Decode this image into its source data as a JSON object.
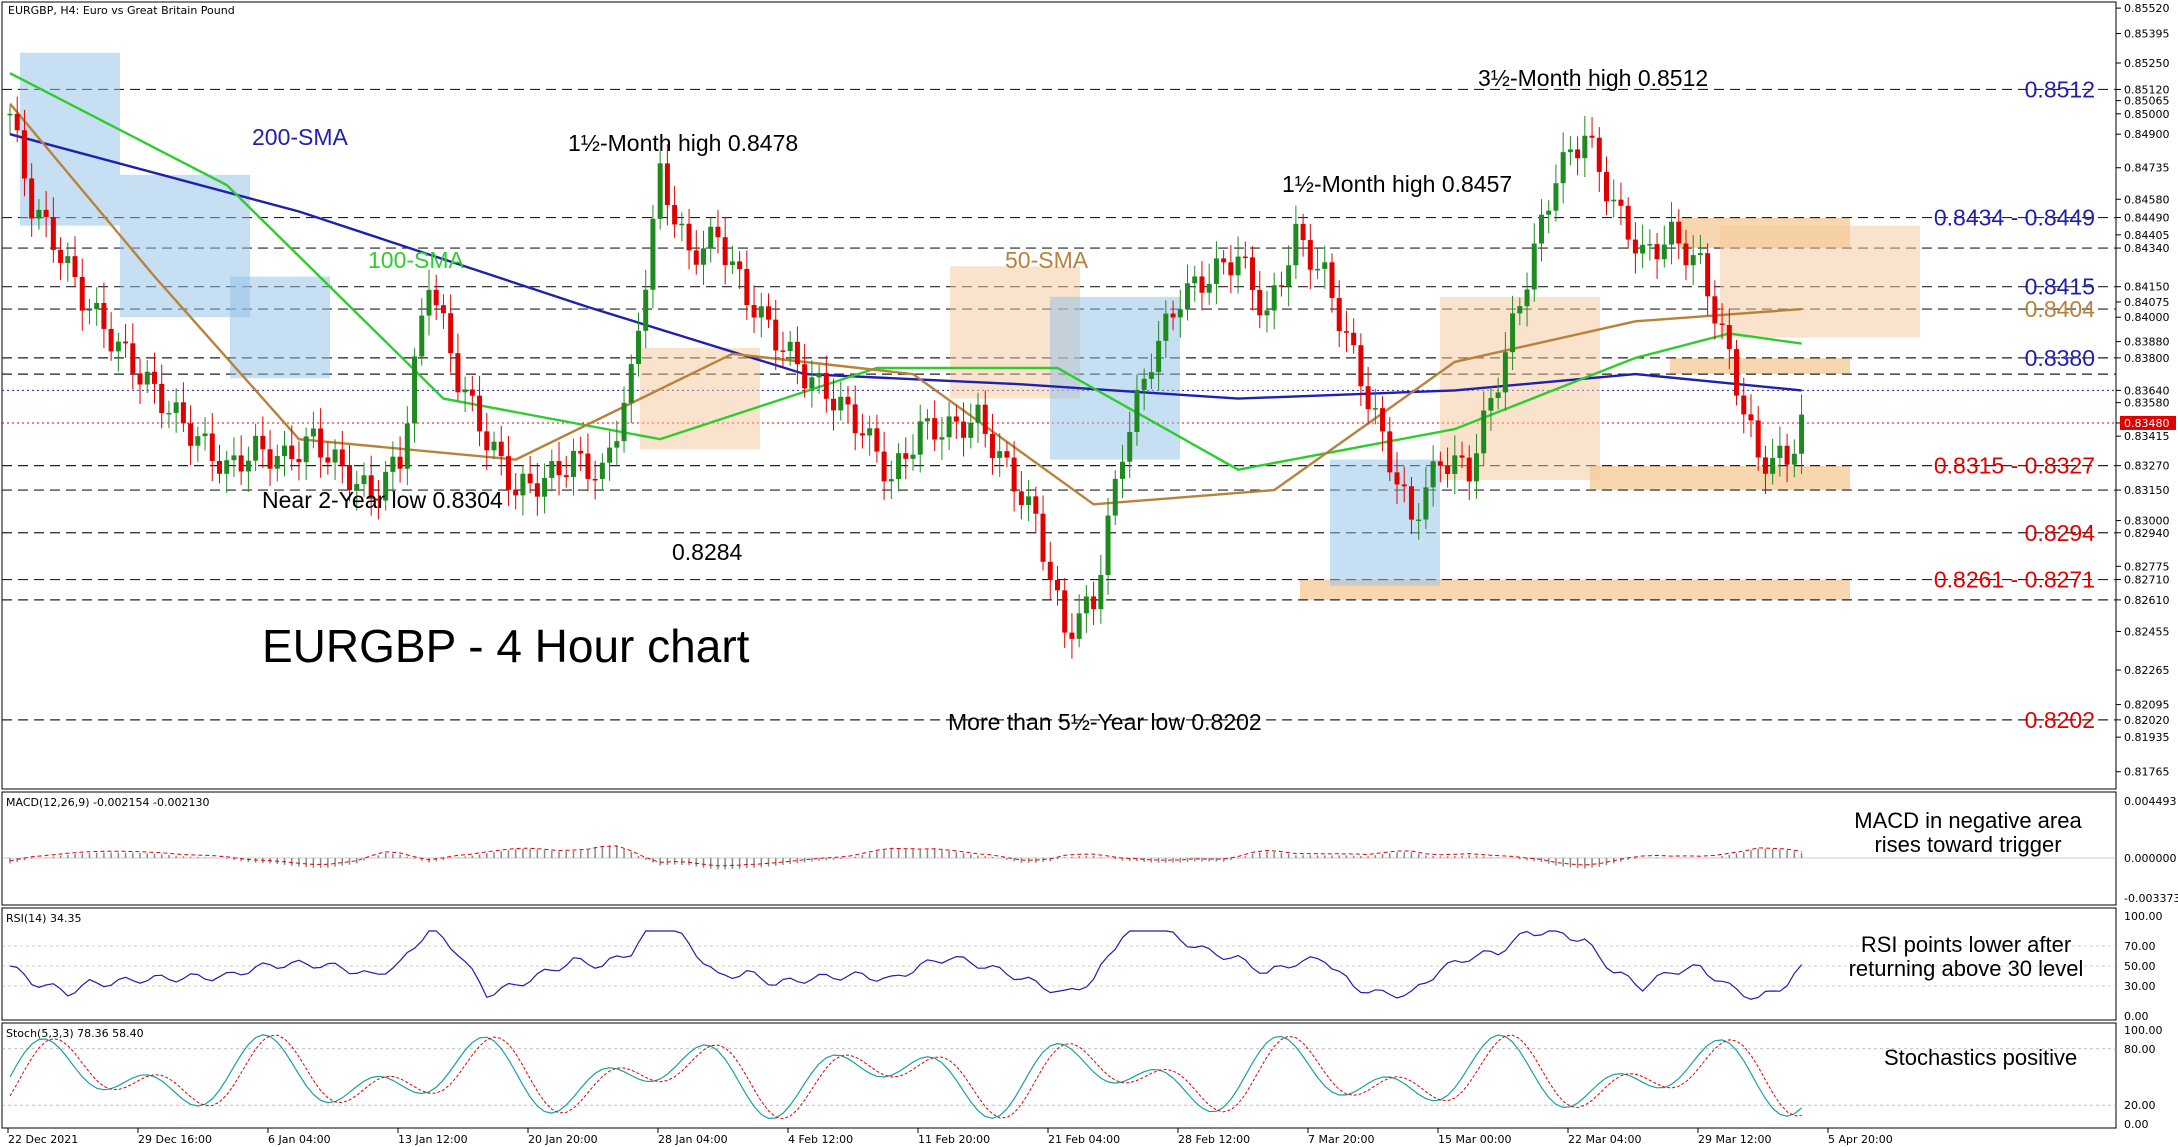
{
  "header": {
    "label": "EURGBP, H4:  Euro vs Great Britain Pound"
  },
  "title": "EURGBP - 4 Hour chart",
  "colors": {
    "bull": "#1f8a1f",
    "bear": "#e00000",
    "sma200": "#1f1fb0",
    "sma100": "#2ecc2e",
    "sma50": "#b8823a",
    "cloud_blue": "#8fbfe8",
    "cloud_orange": "#f5c79a",
    "zone": "#f8d7b0",
    "stoch_k": "#1aa0a0",
    "stoch_d": "#e00000"
  },
  "chart_data": {
    "type": "line",
    "instrument": "EURGBP",
    "timeframe": "H4",
    "ylim": [
      0.8168,
      0.8555
    ],
    "x_ticks": [
      "22 Dec 2021",
      "29 Dec 16:00",
      "6 Jan 04:00",
      "13 Jan 12:00",
      "20 Jan 20:00",
      "28 Jan 04:00",
      "4 Feb 12:00",
      "11 Feb 20:00",
      "21 Feb 04:00",
      "28 Feb 12:00",
      "7 Mar 20:00",
      "15 Mar 00:00",
      "22 Mar 04:00",
      "29 Mar 12:00",
      "5 Apr 20:00"
    ],
    "y_ticks": [
      "0.85520",
      "0.85395",
      "0.85250",
      "0.85120",
      "0.85065",
      "0.85000",
      "0.84900",
      "0.84735",
      "0.84580",
      "0.84490",
      "0.84405",
      "0.84340",
      "0.84150",
      "0.84075",
      "0.84000",
      "0.83880",
      "0.83800",
      "0.83640",
      "0.83580",
      "0.83480",
      "0.83415",
      "0.83270",
      "0.83150",
      "0.83000",
      "0.82940",
      "0.82775",
      "0.82710",
      "0.82610",
      "0.82455",
      "0.82265",
      "0.82095",
      "0.82020",
      "0.81935",
      "0.81765"
    ],
    "price_series": {
      "name": "EURGBP close",
      "points": [
        [
          0,
          0.85
        ],
        [
          3,
          0.8455
        ],
        [
          6,
          0.8438
        ],
        [
          10,
          0.841
        ],
        [
          14,
          0.839
        ],
        [
          18,
          0.8372
        ],
        [
          22,
          0.8355
        ],
        [
          26,
          0.834
        ],
        [
          30,
          0.8325
        ],
        [
          34,
          0.8335
        ],
        [
          38,
          0.833
        ],
        [
          42,
          0.834
        ],
        [
          46,
          0.8325
        ],
        [
          50,
          0.8312
        ],
        [
          54,
          0.833
        ],
        [
          58,
          0.842
        ],
        [
          62,
          0.837
        ],
        [
          66,
          0.834
        ],
        [
          70,
          0.8315
        ],
        [
          74,
          0.832
        ],
        [
          78,
          0.833
        ],
        [
          82,
          0.8322
        ],
        [
          86,
          0.837
        ],
        [
          90,
          0.847
        ],
        [
          94,
          0.843
        ],
        [
          98,
          0.844
        ],
        [
          102,
          0.841
        ],
        [
          106,
          0.839
        ],
        [
          110,
          0.8372
        ],
        [
          114,
          0.836
        ],
        [
          118,
          0.8345
        ],
        [
          122,
          0.832
        ],
        [
          126,
          0.8345
        ],
        [
          130,
          0.8345
        ],
        [
          134,
          0.835
        ],
        [
          138,
          0.8325
        ],
        [
          142,
          0.83
        ],
        [
          146,
          0.8245
        ],
        [
          150,
          0.826
        ],
        [
          154,
          0.8335
        ],
        [
          158,
          0.838
        ],
        [
          162,
          0.841
        ],
        [
          166,
          0.842
        ],
        [
          170,
          0.843
        ],
        [
          174,
          0.84
        ],
        [
          178,
          0.844
        ],
        [
          182,
          0.842
        ],
        [
          186,
          0.838
        ],
        [
          190,
          0.834
        ],
        [
          194,
          0.83
        ],
        [
          198,
          0.833
        ],
        [
          202,
          0.8325
        ],
        [
          206,
          0.837
        ],
        [
          210,
          0.842
        ],
        [
          214,
          0.847
        ],
        [
          218,
          0.849
        ],
        [
          222,
          0.8455
        ],
        [
          226,
          0.843
        ],
        [
          230,
          0.844
        ],
        [
          234,
          0.8425
        ],
        [
          238,
          0.838
        ],
        [
          242,
          0.833
        ],
        [
          246,
          0.833
        ],
        [
          248,
          0.8348
        ]
      ]
    },
    "series": [
      {
        "name": "200-SMA",
        "values": [
          [
            0,
            0.849
          ],
          [
            40,
            0.8452
          ],
          [
            80,
            0.8405
          ],
          [
            110,
            0.8372
          ],
          [
            140,
            0.8367
          ],
          [
            170,
            0.836
          ],
          [
            200,
            0.8364
          ],
          [
            225,
            0.8372
          ],
          [
            248,
            0.8364
          ]
        ]
      },
      {
        "name": "100-SMA",
        "values": [
          [
            0,
            0.852
          ],
          [
            30,
            0.8465
          ],
          [
            60,
            0.836
          ],
          [
            90,
            0.834
          ],
          [
            120,
            0.8375
          ],
          [
            145,
            0.8375
          ],
          [
            170,
            0.8325
          ],
          [
            200,
            0.8345
          ],
          [
            225,
            0.838
          ],
          [
            238,
            0.8392
          ],
          [
            248,
            0.8387
          ]
        ]
      },
      {
        "name": "50-SMA",
        "values": [
          [
            0,
            0.8505
          ],
          [
            20,
            0.842
          ],
          [
            40,
            0.834
          ],
          [
            70,
            0.833
          ],
          [
            100,
            0.8382
          ],
          [
            125,
            0.8372
          ],
          [
            150,
            0.8308
          ],
          [
            175,
            0.8315
          ],
          [
            200,
            0.8378
          ],
          [
            225,
            0.8398
          ],
          [
            248,
            0.8404
          ]
        ]
      }
    ],
    "levels": [
      {
        "label": "0.8512",
        "value": 0.8512,
        "color": "#1f1fb0"
      },
      {
        "label": "0.8434 - 0.8449",
        "value": 0.8449,
        "low": 0.8434,
        "color": "#1f1fb0",
        "zone": true
      },
      {
        "label": "0.8415",
        "value": 0.8415,
        "color": "#1f1fb0"
      },
      {
        "label": "0.8404",
        "value": 0.8404,
        "color": "#b8823a"
      },
      {
        "label": "0.8380",
        "value": 0.838,
        "color": "#1f1fb0",
        "zone": true,
        "low": 0.8372
      },
      {
        "label": "0.8315 - 0.8327",
        "value": 0.8327,
        "low": 0.8315,
        "color": "#e00000",
        "zone": true
      },
      {
        "label": "0.8294",
        "value": 0.8294,
        "color": "#e00000"
      },
      {
        "label": "0.8261 - 0.8271",
        "value": 0.8271,
        "low": 0.8261,
        "color": "#e00000",
        "zone": true
      },
      {
        "label": "0.8202",
        "value": 0.8202,
        "color": "#e00000"
      }
    ],
    "current_price": "0.83480",
    "annotations": [
      {
        "text": "200-SMA",
        "color": "#1f1fb0"
      },
      {
        "text": "100-SMA",
        "color": "#2ecc2e"
      },
      {
        "text": "50-SMA",
        "color": "#b8823a"
      },
      {
        "text": "1½-Month high 0.8478",
        "color": "#000000"
      },
      {
        "text": "1½-Month high 0.8457",
        "color": "#000000"
      },
      {
        "text": "3½-Month high 0.8512",
        "color": "#000000"
      },
      {
        "text": "Near 2-Year low 0.8304",
        "color": "#000000"
      },
      {
        "text": "0.8284",
        "color": "#000000"
      },
      {
        "text": "More than 5½-Year low 0.8202",
        "color": "#000000"
      }
    ]
  },
  "macd": {
    "label": "MACD(12,26,9) -0.002154 -0.002130",
    "ticks": [
      "0.004493",
      "0.000000",
      "-0.003373"
    ],
    "note": "MACD in negative area\nrises toward trigger"
  },
  "rsi": {
    "label": "RSI(14) 34.35",
    "ticks": [
      "100.00",
      "70.00",
      "50.00",
      "30.00",
      "0.00"
    ],
    "note": "RSI points lower after\nreturning above 30 level"
  },
  "stoch": {
    "label": "Stoch(5,3,3) 78.36 58.40",
    "ticks": [
      "100.00",
      "80.00",
      "20.00",
      "0.00"
    ],
    "note": "Stochastics positive"
  }
}
